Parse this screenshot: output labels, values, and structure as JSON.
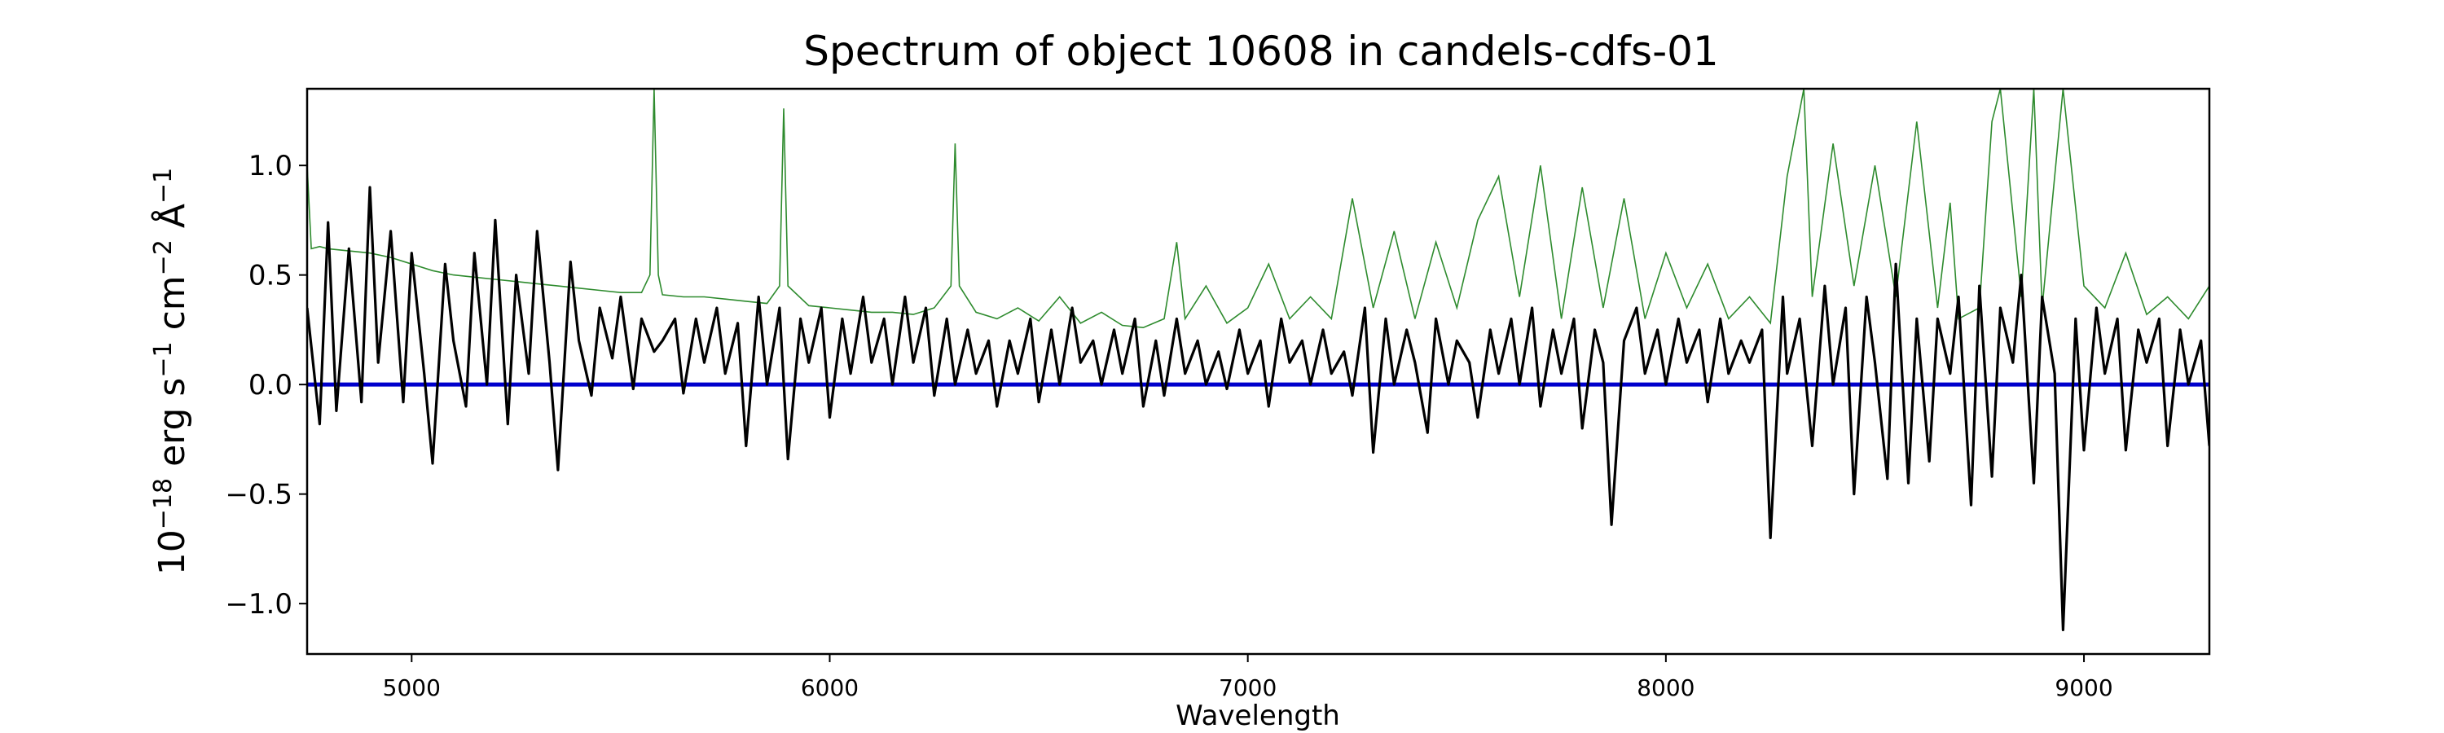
{
  "chart_data": {
    "type": "line",
    "title": "Spectrum of object 10608 in candels-cdfs-01",
    "xlabel": "Wavelength",
    "ylabel_parts": {
      "base": "10",
      "exp": "−18",
      "mid1": " erg s",
      "exp1": "−1",
      "mid2": " cm",
      "exp2": "−2",
      "mid3": " Å",
      "exp3": "−1"
    },
    "xlim": [
      4750,
      9300
    ],
    "ylim": [
      -1.23,
      1.35
    ],
    "x_ticks": [
      5000,
      6000,
      7000,
      8000,
      9000
    ],
    "x_tick_labels": [
      "5000",
      "6000",
      "7000",
      "8000",
      "9000"
    ],
    "y_ticks": [
      1.0,
      0.5,
      0.0,
      -0.5,
      -1.0
    ],
    "y_tick_labels": [
      "1.0",
      "0.5",
      "0.0",
      "−0.5",
      "−1.0"
    ],
    "grid": false,
    "legend": "none",
    "colors": {
      "flux": "#000000",
      "error": "#2e8b2e",
      "zero": "#0000cc"
    },
    "series": [
      {
        "role": "flux",
        "x": [
          4750,
          4780,
          4800,
          4820,
          4850,
          4880,
          4900,
          4920,
          4950,
          4980,
          5000,
          5030,
          5050,
          5080,
          5100,
          5130,
          5150,
          5180,
          5200,
          5230,
          5250,
          5280,
          5300,
          5330,
          5350,
          5380,
          5400,
          5430,
          5450,
          5480,
          5500,
          5530,
          5550,
          5580,
          5600,
          5630,
          5650,
          5680,
          5700,
          5730,
          5750,
          5780,
          5800,
          5830,
          5850,
          5880,
          5900,
          5930,
          5950,
          5980,
          6000,
          6030,
          6050,
          6080,
          6100,
          6130,
          6150,
          6180,
          6200,
          6230,
          6250,
          6280,
          6300,
          6330,
          6350,
          6380,
          6400,
          6430,
          6450,
          6480,
          6500,
          6530,
          6550,
          6580,
          6600,
          6630,
          6650,
          6680,
          6700,
          6730,
          6750,
          6780,
          6800,
          6830,
          6850,
          6880,
          6900,
          6930,
          6950,
          6980,
          7000,
          7030,
          7050,
          7080,
          7100,
          7130,
          7150,
          7180,
          7200,
          7230,
          7250,
          7280,
          7300,
          7330,
          7350,
          7380,
          7400,
          7430,
          7450,
          7480,
          7500,
          7530,
          7550,
          7580,
          7600,
          7630,
          7650,
          7680,
          7700,
          7730,
          7750,
          7780,
          7800,
          7830,
          7850,
          7870,
          7900,
          7930,
          7950,
          7980,
          8000,
          8030,
          8050,
          8080,
          8100,
          8130,
          8150,
          8180,
          8200,
          8230,
          8250,
          8280,
          8290,
          8320,
          8350,
          8380,
          8400,
          8430,
          8450,
          8480,
          8500,
          8530,
          8550,
          8580,
          8600,
          8630,
          8650,
          8680,
          8700,
          8730,
          8750,
          8780,
          8800,
          8830,
          8850,
          8880,
          8900,
          8930,
          8950,
          8980,
          9000,
          9030,
          9050,
          9080,
          9100,
          9130,
          9150,
          9180,
          9200,
          9230,
          9250,
          9280,
          9300
        ],
        "y": [
          0.35,
          -0.18,
          0.74,
          -0.12,
          0.62,
          -0.08,
          0.9,
          0.1,
          0.7,
          -0.08,
          0.6,
          0.05,
          -0.36,
          0.55,
          0.2,
          -0.1,
          0.6,
          0.0,
          0.75,
          -0.18,
          0.5,
          0.05,
          0.7,
          0.1,
          -0.39,
          0.56,
          0.2,
          -0.05,
          0.35,
          0.12,
          0.4,
          -0.02,
          0.3,
          0.15,
          0.2,
          0.3,
          -0.04,
          0.3,
          0.1,
          0.35,
          0.05,
          0.28,
          -0.28,
          0.4,
          0.0,
          0.35,
          -0.34,
          0.3,
          0.1,
          0.35,
          -0.15,
          0.3,
          0.05,
          0.4,
          0.1,
          0.3,
          0.0,
          0.4,
          0.1,
          0.35,
          -0.05,
          0.3,
          0.0,
          0.25,
          0.05,
          0.2,
          -0.1,
          0.2,
          0.05,
          0.3,
          -0.08,
          0.25,
          0.0,
          0.35,
          0.1,
          0.2,
          0.0,
          0.25,
          0.05,
          0.3,
          -0.1,
          0.2,
          -0.05,
          0.3,
          0.05,
          0.2,
          0.0,
          0.15,
          -0.02,
          0.25,
          0.05,
          0.2,
          -0.1,
          0.3,
          0.1,
          0.2,
          0.0,
          0.25,
          0.05,
          0.15,
          -0.05,
          0.35,
          -0.31,
          0.3,
          0.0,
          0.25,
          0.1,
          -0.22,
          0.3,
          0.0,
          0.2,
          0.1,
          -0.15,
          0.25,
          0.05,
          0.3,
          0.0,
          0.35,
          -0.1,
          0.25,
          0.05,
          0.3,
          -0.2,
          0.25,
          0.1,
          -0.64,
          0.2,
          0.35,
          0.05,
          0.25,
          0.0,
          0.3,
          0.1,
          0.25,
          -0.08,
          0.3,
          0.05,
          0.2,
          0.1,
          0.25,
          -0.7,
          0.4,
          0.05,
          0.3,
          -0.28,
          0.45,
          0.0,
          0.35,
          -0.5,
          0.4,
          0.1,
          -0.43,
          0.55,
          -0.45,
          0.3,
          -0.35,
          0.3,
          0.05,
          0.4,
          -0.55,
          0.45,
          -0.42,
          0.35,
          0.1,
          0.5,
          -0.45,
          0.4,
          0.05,
          -1.12,
          0.3,
          -0.3,
          0.35,
          0.05,
          0.3,
          -0.3,
          0.25,
          0.1,
          0.3,
          -0.28,
          0.25,
          0.0,
          0.2,
          -0.28
        ]
      },
      {
        "role": "error",
        "x": [
          4750,
          4760,
          4780,
          4800,
          4850,
          4900,
          4950,
          5000,
          5050,
          5100,
          5150,
          5200,
          5250,
          5300,
          5350,
          5400,
          5450,
          5500,
          5550,
          5570,
          5580,
          5590,
          5600,
          5650,
          5700,
          5750,
          5800,
          5850,
          5880,
          5890,
          5900,
          5950,
          6000,
          6050,
          6100,
          6150,
          6200,
          6250,
          6290,
          6300,
          6310,
          6350,
          6400,
          6450,
          6500,
          6550,
          6600,
          6650,
          6700,
          6750,
          6800,
          6830,
          6850,
          6900,
          6950,
          7000,
          7050,
          7100,
          7150,
          7200,
          7250,
          7300,
          7350,
          7400,
          7450,
          7500,
          7550,
          7600,
          7650,
          7700,
          7750,
          7800,
          7850,
          7900,
          7950,
          8000,
          8050,
          8100,
          8150,
          8200,
          8250,
          8290,
          8330,
          8350,
          8400,
          8450,
          8500,
          8550,
          8600,
          8650,
          8680,
          8700,
          8750,
          8780,
          8800,
          8850,
          8880,
          8900,
          8950,
          9000,
          9050,
          9100,
          9150,
          9200,
          9250,
          9300
        ],
        "y": [
          1.0,
          0.62,
          0.63,
          0.62,
          0.61,
          0.6,
          0.58,
          0.55,
          0.52,
          0.5,
          0.49,
          0.48,
          0.47,
          0.46,
          0.45,
          0.44,
          0.43,
          0.42,
          0.42,
          0.5,
          1.35,
          0.5,
          0.41,
          0.4,
          0.4,
          0.39,
          0.38,
          0.37,
          0.45,
          1.26,
          0.45,
          0.36,
          0.35,
          0.34,
          0.33,
          0.33,
          0.32,
          0.35,
          0.45,
          1.1,
          0.45,
          0.33,
          0.3,
          0.35,
          0.29,
          0.4,
          0.28,
          0.33,
          0.27,
          0.26,
          0.3,
          0.65,
          0.3,
          0.45,
          0.28,
          0.35,
          0.55,
          0.3,
          0.4,
          0.3,
          0.85,
          0.35,
          0.7,
          0.3,
          0.65,
          0.35,
          0.75,
          0.95,
          0.4,
          1.0,
          0.3,
          0.9,
          0.35,
          0.85,
          0.3,
          0.6,
          0.35,
          0.55,
          0.3,
          0.4,
          0.28,
          0.95,
          1.35,
          0.4,
          1.1,
          0.45,
          1.0,
          0.4,
          1.2,
          0.35,
          0.83,
          0.3,
          0.35,
          1.2,
          1.35,
          0.4,
          1.35,
          0.35,
          1.35,
          0.45,
          0.35,
          0.6,
          0.32,
          0.4,
          0.3,
          0.45
        ]
      }
    ]
  }
}
